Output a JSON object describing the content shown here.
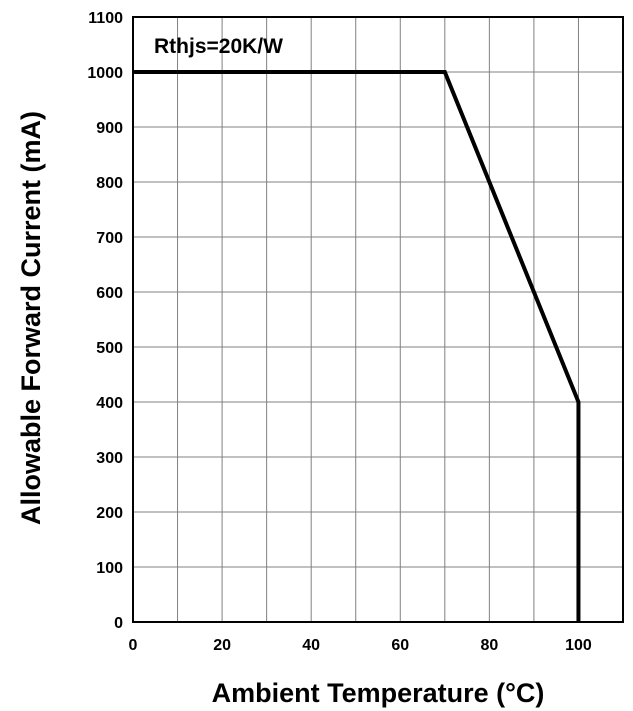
{
  "chart_data": {
    "type": "line",
    "title": "",
    "xlabel": "Ambient Temperature (°C)",
    "ylabel": "Allowable Forward Current (mA)",
    "xlim": [
      0,
      110
    ],
    "ylim": [
      0,
      1100
    ],
    "x_ticks": [
      0,
      20,
      40,
      60,
      80,
      100
    ],
    "y_ticks": [
      0,
      100,
      200,
      300,
      400,
      500,
      600,
      700,
      800,
      900,
      1000,
      1100
    ],
    "x_grid_step": 10,
    "y_grid_step": 100,
    "grid": true,
    "annotation": "Rthjs=20K/W",
    "series": [
      {
        "x": [
          0,
          70,
          100,
          100
        ],
        "y": [
          1000,
          1000,
          400,
          0
        ],
        "color": "#000000"
      }
    ]
  }
}
